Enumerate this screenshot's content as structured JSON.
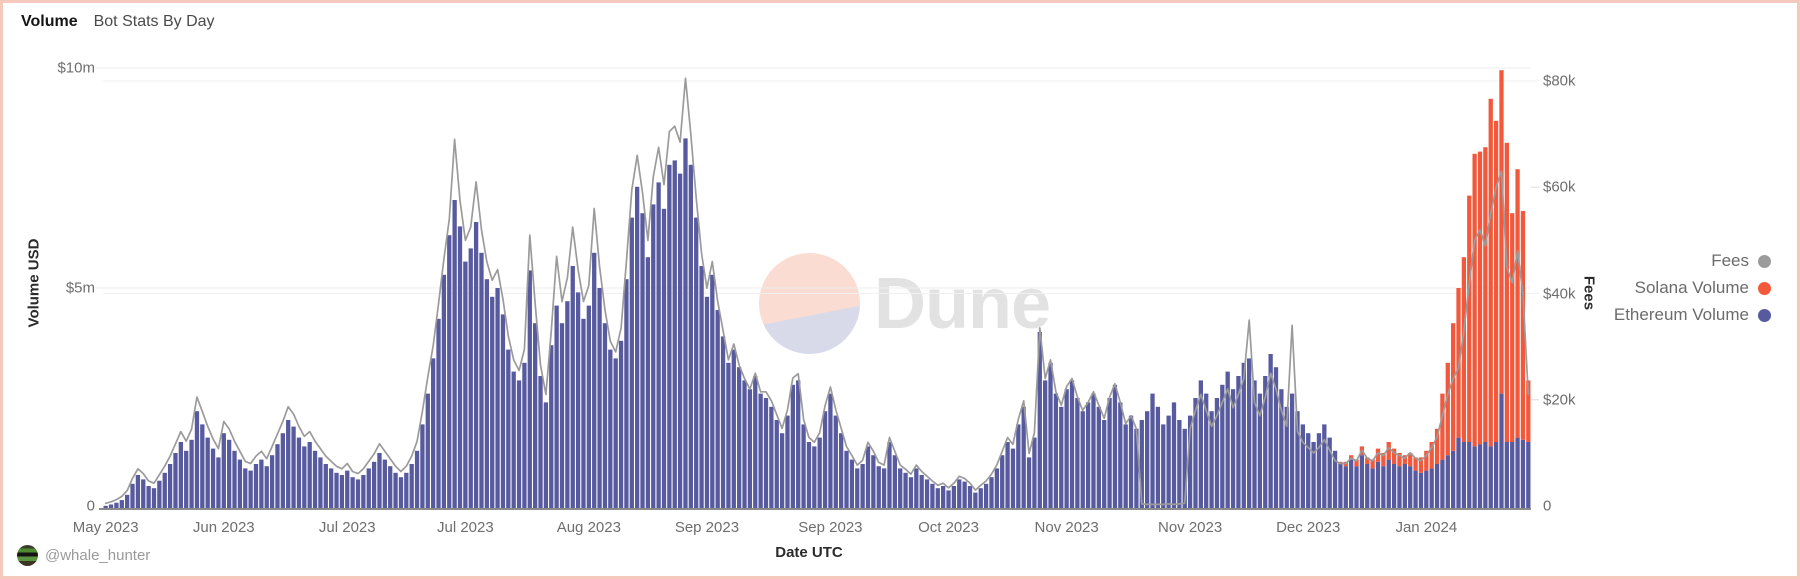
{
  "header": {
    "title": "Volume",
    "subtitle": "Bot Stats By Day"
  },
  "watermark": {
    "text": "Dune",
    "circle_top_color": "#fbdcd2",
    "circle_bottom_color": "#d8daea"
  },
  "footer": {
    "attribution": "@whale_hunter",
    "avatar_icon": "frog-avatar"
  },
  "legend": {
    "items": [
      {
        "label": "Fees",
        "color": "#9b9b9b"
      },
      {
        "label": "Solana Volume",
        "color": "#f2593c"
      },
      {
        "label": "Ethereum Volume",
        "color": "#575a9e"
      }
    ]
  },
  "axes": {
    "left": {
      "title": "Volume USD",
      "tick_labels": [
        "$10m",
        "$5m",
        "0"
      ],
      "tick_values_millions": [
        10,
        5,
        0
      ],
      "range_millions": [
        0,
        10
      ]
    },
    "right": {
      "title": "Fees",
      "tick_labels": [
        "$80k",
        "$60k",
        "$40k",
        "$20k",
        "0"
      ],
      "tick_values_thousands": [
        80,
        60,
        40,
        20,
        0
      ],
      "range_thousands": [
        0,
        80
      ]
    },
    "x": {
      "title": "Date UTC",
      "tick_labels": [
        "May 2023",
        "Jun 2023",
        "Jul 2023",
        "Jul 2023",
        "Aug 2023",
        "Sep 2023",
        "Sep 2023",
        "Oct 2023",
        "Nov 2023",
        "Nov 2023",
        "Dec 2023",
        "Jan 2024"
      ]
    }
  },
  "chart_data": {
    "type": "bar",
    "subtype": "stacked-bars-with-line-overlay",
    "x_start_date": "2023-05-01",
    "x_interval": "1 day",
    "n_points": 266,
    "x_tick_labels": [
      "May 2023",
      "Jun 2023",
      "Jul 2023",
      "Jul 2023",
      "Aug 2023",
      "Sep 2023",
      "Sep 2023",
      "Oct 2023",
      "Nov 2023",
      "Nov 2023",
      "Dec 2023",
      "Jan 2024"
    ],
    "x_tick_day_indices": [
      0,
      22,
      45,
      67,
      90,
      112,
      135,
      157,
      179,
      202,
      224,
      246
    ],
    "title": "Volume | Bot Stats By Day",
    "xlabel": "Date UTC",
    "ylabel_left": "Volume USD",
    "ylabel_right": "Fees",
    "ylim_left_millions": [
      0,
      10
    ],
    "ylim_right_thousands": [
      0,
      80
    ],
    "legend_position": "right",
    "grid": "sparse-horizontal",
    "series": [
      {
        "name": "Ethereum Volume",
        "type": "bar",
        "stack": "volume",
        "axis": "left",
        "unit": "USD millions",
        "color": "#575a9e",
        "values": [
          0.05,
          0.08,
          0.12,
          0.18,
          0.3,
          0.55,
          0.75,
          0.65,
          0.5,
          0.45,
          0.62,
          0.8,
          1,
          1.25,
          1.5,
          1.3,
          1.55,
          2.2,
          1.9,
          1.6,
          1.35,
          1.15,
          1.7,
          1.55,
          1.3,
          1.1,
          0.9,
          0.85,
          1,
          1.1,
          0.95,
          1.2,
          1.45,
          1.7,
          2,
          1.85,
          1.6,
          1.4,
          1.5,
          1.3,
          1.15,
          1,
          0.9,
          0.8,
          0.75,
          0.85,
          0.7,
          0.65,
          0.75,
          0.9,
          1.05,
          1.25,
          1.1,
          0.95,
          0.8,
          0.7,
          0.8,
          1,
          1.3,
          1.9,
          2.6,
          3.4,
          4.3,
          5.3,
          6.2,
          7,
          6.4,
          5.6,
          5.9,
          6.5,
          5.8,
          5.2,
          4.8,
          5,
          4.4,
          3.6,
          3.1,
          2.9,
          3.3,
          5.4,
          4.2,
          3,
          2.4,
          3.7,
          4.6,
          4.2,
          4.7,
          5.5,
          4.9,
          4.3,
          4.6,
          5.8,
          5,
          4.2,
          3.6,
          3.4,
          3.8,
          5.2,
          6.6,
          7.3,
          6.7,
          5.7,
          6.9,
          7.4,
          6.8,
          7.8,
          7.9,
          7.6,
          8.4,
          7.8,
          6.6,
          5.5,
          4.8,
          5.3,
          4.5,
          3.9,
          3.3,
          3.6,
          3.2,
          2.9,
          2.7,
          3,
          2.6,
          2.5,
          2.3,
          2,
          1.7,
          2.1,
          2.8,
          2.9,
          1.9,
          1.5,
          1.4,
          1.6,
          2.2,
          2.6,
          2.1,
          1.7,
          1.3,
          1.1,
          0.9,
          1,
          1.4,
          1.2,
          0.95,
          0.9,
          1.5,
          1.2,
          0.9,
          0.8,
          0.7,
          0.9,
          0.75,
          0.65,
          0.55,
          0.45,
          0.5,
          0.4,
          0.5,
          0.65,
          0.6,
          0.5,
          0.35,
          0.45,
          0.55,
          0.7,
          0.9,
          1.2,
          1.5,
          1.35,
          1.9,
          2.3,
          1.15,
          1.6,
          4,
          2.9,
          3.3,
          2.6,
          2.3,
          2.7,
          2.9,
          2.5,
          2.2,
          2.4,
          2.6,
          2.3,
          2,
          2.5,
          2.8,
          2.4,
          1.9,
          2.1,
          1.8,
          2,
          2.2,
          2.6,
          2.3,
          1.9,
          2.1,
          2.4,
          2,
          1.8,
          2.1,
          2.5,
          2.9,
          2.6,
          2.2,
          2.5,
          2.8,
          3.1,
          2.7,
          3,
          3.3,
          3.4,
          2.9,
          2.6,
          3,
          3.5,
          3.2,
          2.7,
          2.3,
          2.6,
          2.2,
          1.9,
          1.7,
          1.5,
          1.7,
          1.9,
          1.6,
          1.3,
          1,
          0.95,
          1.1,
          0.95,
          1.2,
          1,
          0.9,
          1.05,
          0.95,
          1.1,
          1,
          0.95,
          1,
          0.95,
          0.85,
          0.8,
          0.85,
          0.9,
          1,
          1.1,
          1.2,
          1.3,
          1.6,
          1.5,
          1.5,
          1.4,
          1.45,
          1.5,
          1.4,
          1.5,
          2.6,
          1.5,
          1.5,
          1.6,
          1.55,
          1.5
        ]
      },
      {
        "name": "Solana Volume",
        "type": "bar",
        "stack": "volume",
        "axis": "left",
        "unit": "USD millions",
        "color": "#f2593c",
        "values": [
          0,
          0,
          0,
          0,
          0,
          0,
          0,
          0,
          0,
          0,
          0,
          0,
          0,
          0,
          0,
          0,
          0,
          0,
          0,
          0,
          0,
          0,
          0,
          0,
          0,
          0,
          0,
          0,
          0,
          0,
          0,
          0,
          0,
          0,
          0,
          0,
          0,
          0,
          0,
          0,
          0,
          0,
          0,
          0,
          0,
          0,
          0,
          0,
          0,
          0,
          0,
          0,
          0,
          0,
          0,
          0,
          0,
          0,
          0,
          0,
          0,
          0,
          0,
          0,
          0,
          0,
          0,
          0,
          0,
          0,
          0,
          0,
          0,
          0,
          0,
          0,
          0,
          0,
          0,
          0,
          0,
          0,
          0,
          0,
          0,
          0,
          0,
          0,
          0,
          0,
          0,
          0,
          0,
          0,
          0,
          0,
          0,
          0,
          0,
          0,
          0,
          0,
          0,
          0,
          0,
          0,
          0,
          0,
          0,
          0,
          0,
          0,
          0,
          0,
          0,
          0,
          0,
          0,
          0,
          0,
          0,
          0,
          0,
          0,
          0,
          0,
          0,
          0,
          0,
          0,
          0,
          0,
          0,
          0,
          0,
          0,
          0,
          0,
          0,
          0,
          0,
          0,
          0,
          0,
          0,
          0,
          0,
          0,
          0,
          0,
          0,
          0,
          0,
          0,
          0,
          0,
          0,
          0,
          0,
          0,
          0,
          0,
          0,
          0,
          0,
          0,
          0,
          0,
          0,
          0,
          0,
          0,
          0,
          0,
          0,
          0,
          0,
          0,
          0,
          0,
          0,
          0,
          0,
          0,
          0,
          0,
          0,
          0,
          0,
          0,
          0,
          0,
          0,
          0,
          0,
          0,
          0,
          0,
          0,
          0,
          0,
          0,
          0,
          0,
          0,
          0,
          0,
          0,
          0,
          0,
          0,
          0,
          0,
          0,
          0,
          0,
          0,
          0,
          0,
          0,
          0,
          0,
          0,
          0,
          0,
          0,
          0,
          0,
          0,
          0,
          0.05,
          0.1,
          0.1,
          0.15,
          0.2,
          0.15,
          0.2,
          0.3,
          0.3,
          0.4,
          0.35,
          0.3,
          0.2,
          0.3,
          0.3,
          0.35,
          0.45,
          0.6,
          0.8,
          1.5,
          2.1,
          2.9,
          3.4,
          4.2,
          5.6,
          6.65,
          6.65,
          6.7,
          7.9,
          7.3,
          7.35,
          6.8,
          5.2,
          6.1,
          5.2,
          1.4
        ]
      },
      {
        "name": "Fees",
        "type": "line",
        "axis": "right",
        "unit": "USD thousands",
        "color": "#9b9b9b",
        "values": [
          0.5,
          0.8,
          1.2,
          1.8,
          2.9,
          5.2,
          7,
          6.1,
          4.7,
          4.3,
          5.9,
          7.5,
          9.4,
          11.7,
          14,
          12.2,
          14.5,
          20.5,
          17.8,
          15,
          12.6,
          10.8,
          15.9,
          14.5,
          12.2,
          10.3,
          8.4,
          8,
          9.4,
          10.3,
          8.9,
          11.2,
          13.6,
          15.9,
          18.7,
          17.3,
          15,
          13.1,
          14,
          12.2,
          10.8,
          9.4,
          8.4,
          7.5,
          7,
          8,
          6.5,
          6.1,
          7,
          8.4,
          9.8,
          11.7,
          10.3,
          8.9,
          7.5,
          6.5,
          7.5,
          9.4,
          12.2,
          17.8,
          24.3,
          30.2,
          38,
          46.5,
          54,
          69,
          57.5,
          50,
          52.5,
          61,
          52,
          46,
          42.5,
          44.5,
          39,
          32,
          27.5,
          25.5,
          29.5,
          51,
          38,
          26.5,
          21,
          33,
          47,
          38.5,
          43,
          52.5,
          44.5,
          38.5,
          41.5,
          56,
          45,
          37,
          31,
          29,
          33.5,
          46,
          59.5,
          66,
          59,
          50,
          62,
          67.5,
          60.5,
          70.5,
          71.5,
          68.5,
          80.5,
          70,
          58,
          47.5,
          41,
          46,
          38.5,
          33,
          27.5,
          30.5,
          26.5,
          24,
          22,
          25,
          21.5,
          21.5,
          19.8,
          17.2,
          14.6,
          18.1,
          24.1,
          24.9,
          16.3,
          12.9,
          12,
          13.8,
          18.9,
          22.4,
          18.1,
          14.6,
          11.2,
          9.5,
          7.7,
          8.6,
          12,
          10.3,
          8.2,
          7.7,
          12.9,
          10.3,
          7.7,
          6.9,
          6,
          7.7,
          6.5,
          5.6,
          4.7,
          3.9,
          4.3,
          3.4,
          4.3,
          5.6,
          5.2,
          4.3,
          3,
          3.9,
          4.7,
          6,
          7.7,
          10.3,
          12.9,
          11.6,
          16.3,
          19.8,
          9.9,
          13.8,
          33.5,
          24,
          27.5,
          21.5,
          19,
          22.5,
          24,
          20.5,
          18,
          19.5,
          21.5,
          19,
          16.5,
          20.5,
          23,
          19.5,
          15.5,
          17,
          14.5,
          0.4,
          0.3,
          0.3,
          0.3,
          0.3,
          0.4,
          0.3,
          0.4,
          0.5,
          14.5,
          18,
          21,
          18,
          15,
          17,
          19.5,
          22,
          18.5,
          21,
          24,
          35,
          19.5,
          17,
          20.5,
          25,
          22,
          18,
          15,
          34,
          14,
          12,
          11,
          10,
          11,
          12.5,
          10.5,
          8.5,
          8,
          8,
          9,
          8.5,
          10.5,
          9,
          8.5,
          10,
          9.5,
          11,
          10,
          9.5,
          9,
          10,
          9,
          8.5,
          9.5,
          11,
          13,
          17,
          21,
          24,
          26,
          33,
          42,
          50,
          52,
          49,
          55,
          60,
          63,
          45,
          42,
          48,
          40,
          21
        ]
      }
    ]
  }
}
